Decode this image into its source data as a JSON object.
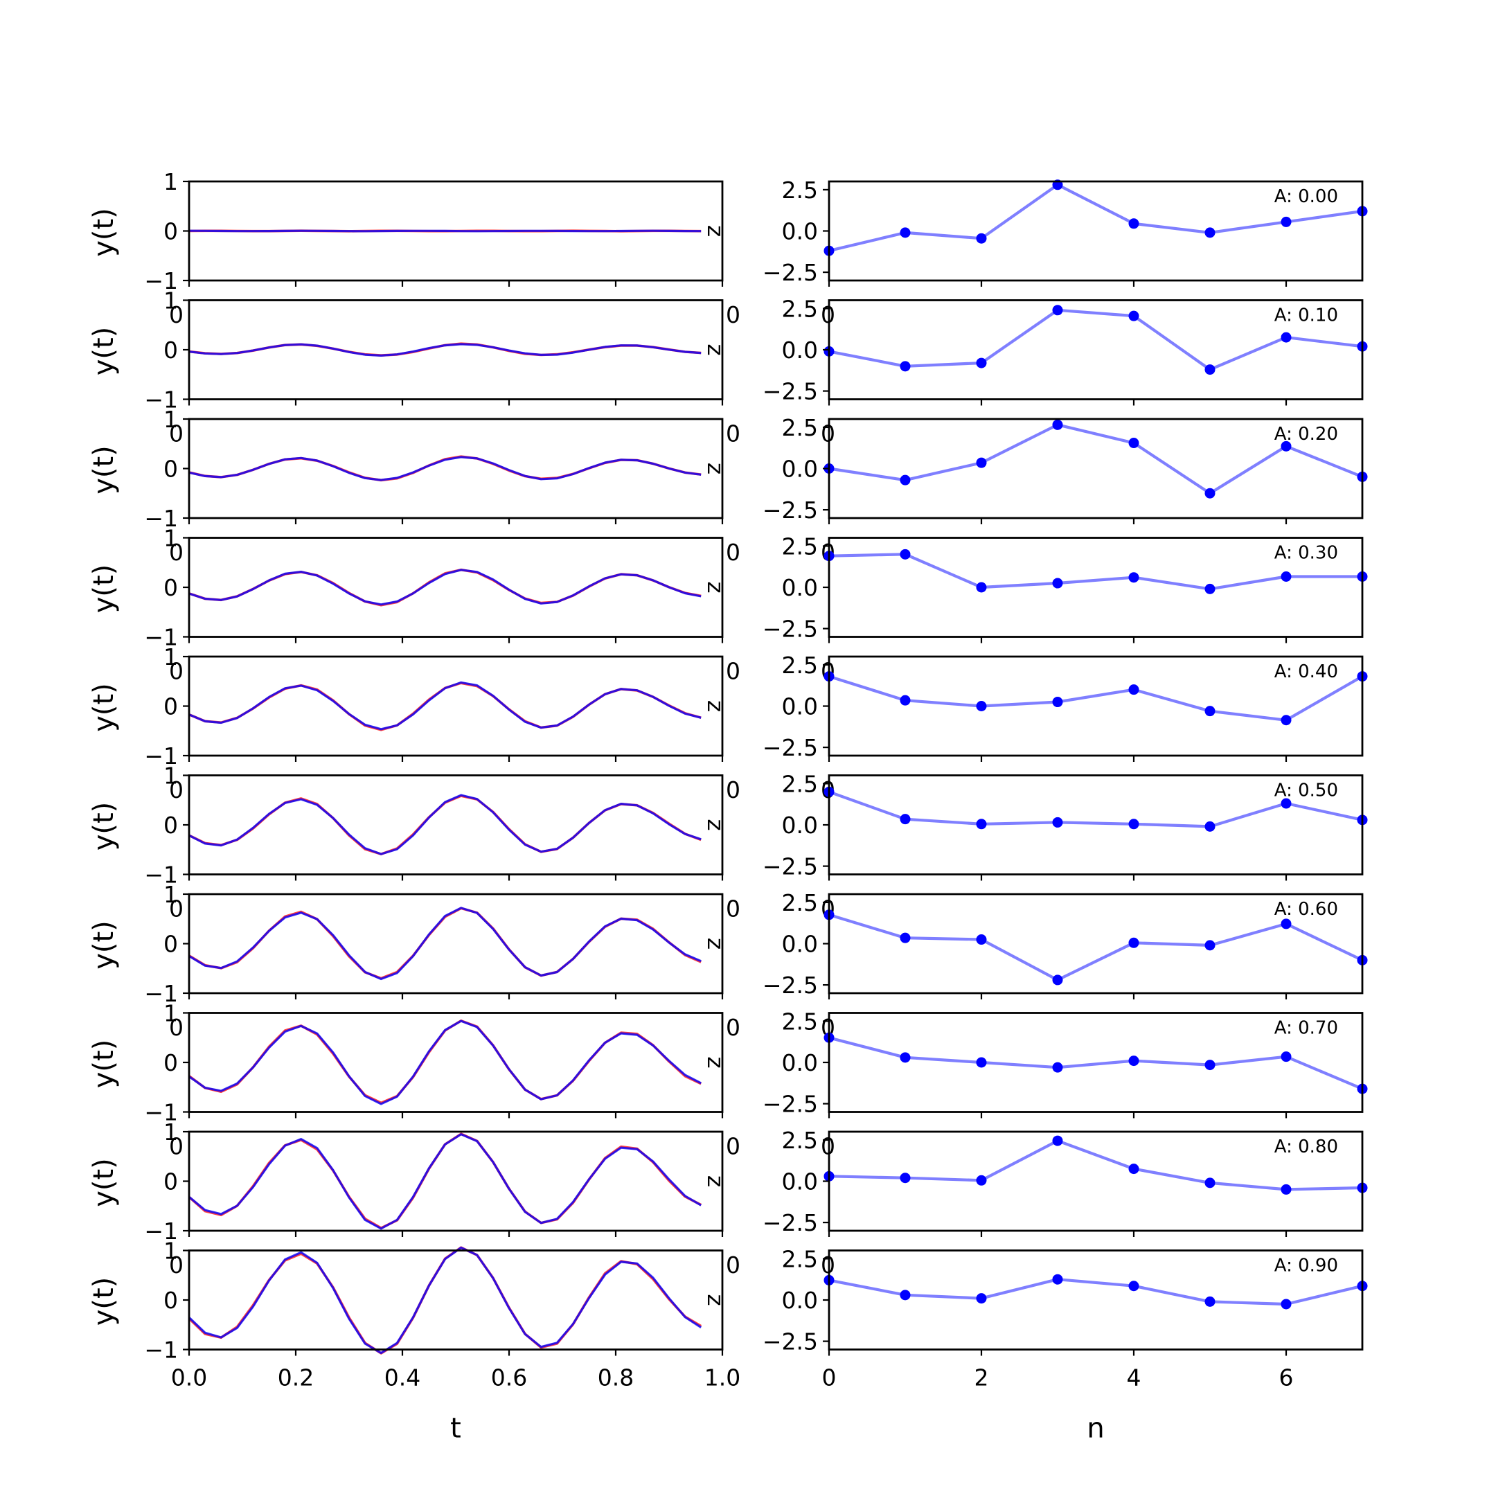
{
  "chart_data": [
    {
      "type": "line",
      "panel": "left-column",
      "description_of_traces": "10 stacked panels; two nearly overlapping traces per panel (red and blue)",
      "xlabel": "t",
      "ylabel": "y(t)",
      "xlim": [
        0,
        0.975
      ],
      "ylim": [
        -1,
        1
      ],
      "xticks": [
        "0.0",
        "0.2",
        "0.4",
        "0.6",
        "0.8",
        "1.0"
      ],
      "yticks": [
        "−1",
        "0",
        "1"
      ],
      "overlap_tick_text": "0",
      "right_tick_text": "z",
      "series_colors": {
        "signal": "#ff0000",
        "reconstruction": "#0000ff"
      },
      "x": [
        0.0,
        0.03,
        0.06,
        0.09,
        0.12,
        0.15,
        0.18,
        0.21,
        0.24,
        0.27,
        0.3,
        0.33,
        0.36,
        0.39,
        0.42,
        0.45,
        0.48,
        0.51,
        0.54,
        0.57,
        0.6,
        0.63,
        0.66,
        0.69,
        0.72,
        0.75,
        0.78,
        0.81,
        0.84,
        0.87,
        0.9,
        0.93,
        0.96
      ],
      "panels": [
        {
          "amplitude": 0.0,
          "peaks": [
            0.02,
            0.02,
            0.02
          ]
        },
        {
          "amplitude": 0.1
        },
        {
          "amplitude": 0.2
        },
        {
          "amplitude": 0.3
        },
        {
          "amplitude": 0.4
        },
        {
          "amplitude": 0.5
        },
        {
          "amplitude": 0.6
        },
        {
          "amplitude": 0.7
        },
        {
          "amplitude": 0.8
        },
        {
          "amplitude": 0.9
        }
      ]
    },
    {
      "type": "line",
      "panel": "right-column",
      "xlabel": "n",
      "ylabel": "",
      "xlim": [
        0,
        7
      ],
      "ylim": [
        -3,
        3
      ],
      "xticks": [
        "0",
        "2",
        "4",
        "6"
      ],
      "yticks": [
        "2.5",
        "0.0",
        "−2.5"
      ],
      "overlap_tick_text": "0",
      "line_color": "#7f7fff",
      "marker_color": "#0000ff",
      "x": [
        0,
        1,
        2,
        3,
        4,
        5,
        6,
        7
      ],
      "panels": [
        {
          "label": "A: 0.00",
          "values": [
            -1.2,
            -0.1,
            -0.45,
            2.8,
            0.45,
            -0.1,
            0.55,
            1.2
          ]
        },
        {
          "label": "A: 0.10",
          "values": [
            -0.1,
            -1.0,
            -0.8,
            2.4,
            2.05,
            -1.2,
            0.75,
            0.2
          ]
        },
        {
          "label": "A: 0.20",
          "values": [
            0.0,
            -0.7,
            0.35,
            2.65,
            1.55,
            -1.5,
            1.35,
            -0.5
          ]
        },
        {
          "label": "A: 0.30",
          "values": [
            1.9,
            2.0,
            0.0,
            0.25,
            0.6,
            -0.1,
            0.65,
            0.65
          ]
        },
        {
          "label": "A: 0.40",
          "values": [
            1.8,
            0.35,
            0.0,
            0.25,
            1.0,
            -0.3,
            -0.85,
            1.8
          ]
        },
        {
          "label": "A: 0.50",
          "values": [
            2.0,
            0.35,
            0.05,
            0.15,
            0.05,
            -0.1,
            1.3,
            0.3
          ]
        },
        {
          "label": "A: 0.60",
          "values": [
            1.75,
            0.35,
            0.25,
            -2.2,
            0.05,
            -0.1,
            1.2,
            -1.0
          ]
        },
        {
          "label": "A: 0.70",
          "values": [
            1.5,
            0.3,
            0.0,
            -0.3,
            0.1,
            -0.15,
            0.35,
            -1.6
          ]
        },
        {
          "label": "A: 0.80",
          "values": [
            0.3,
            0.2,
            0.05,
            2.45,
            0.75,
            -0.1,
            -0.5,
            -0.4
          ]
        },
        {
          "label": "A: 0.90",
          "values": [
            1.2,
            0.3,
            0.1,
            1.25,
            0.85,
            -0.1,
            -0.25,
            0.85
          ]
        }
      ]
    }
  ]
}
